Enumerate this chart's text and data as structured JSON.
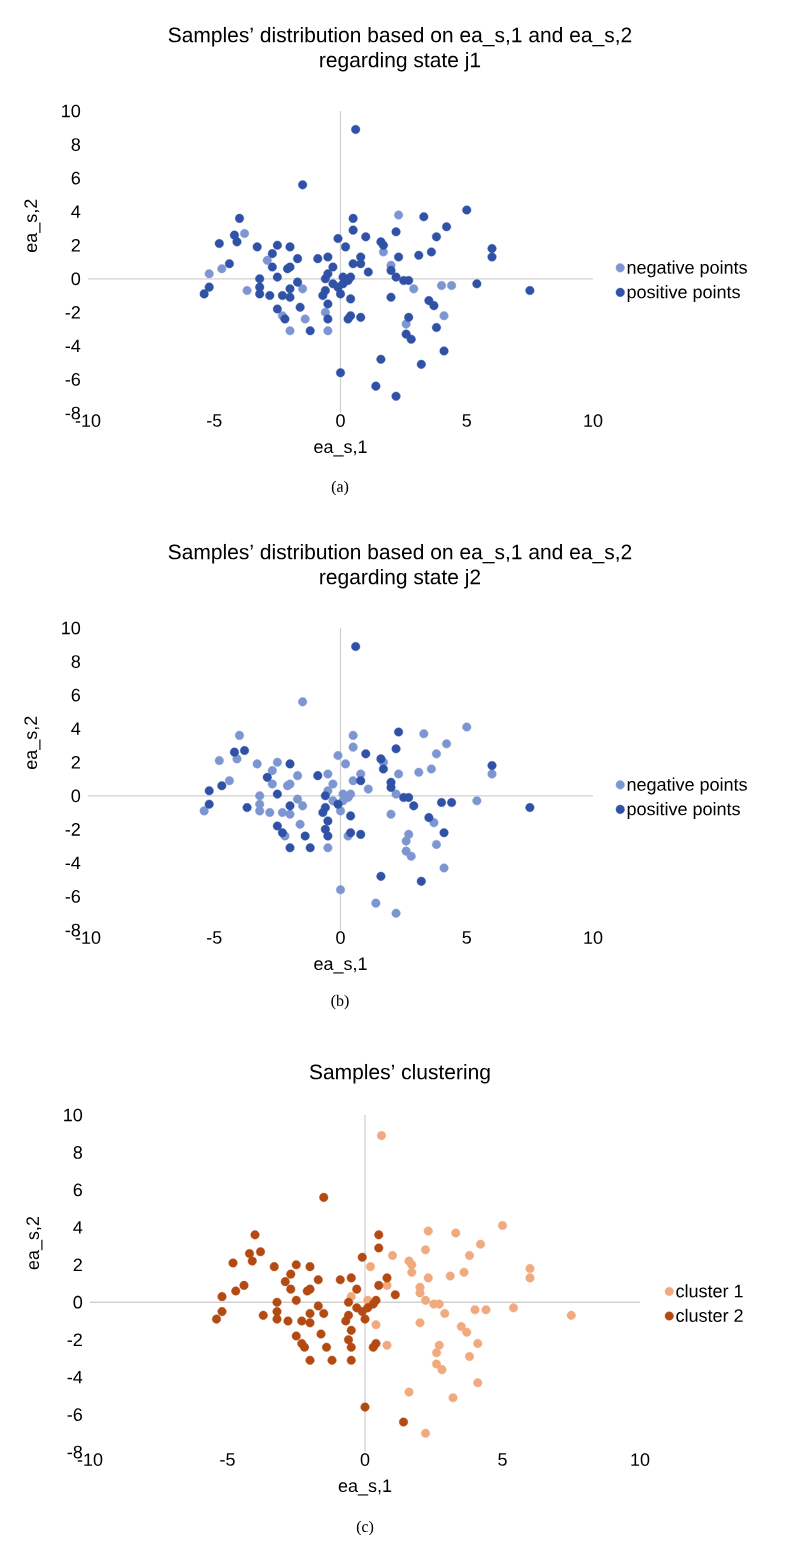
{
  "chart_data": [
    {
      "type": "scatter",
      "title": "Samples’ distribution based on ea_s,1 and ea_s,2 regarding state j1",
      "xlabel": "ea_s,1",
      "ylabel": "ea_s,2",
      "annotations": [
        "(a)"
      ],
      "marker": "circle",
      "legend": "right",
      "xlim": [
        -10,
        10
      ],
      "xticks": [
        -10,
        -5,
        0,
        5,
        10
      ],
      "ylim": [
        -8,
        10
      ],
      "yticks": [
        -8,
        -6,
        -4,
        -2,
        0,
        2,
        4,
        6,
        8,
        10
      ],
      "series": [
        {
          "name": "negative points",
          "color": "#7d96d2",
          "x": [
            2.3,
            1.7,
            2.0,
            2.9,
            4.0,
            4.4,
            4.1,
            2.6,
            -3.8,
            -2.9,
            -4.7,
            -5.2,
            -3.7,
            -1.5,
            -2.3,
            -1.4,
            -2.0,
            -0.5,
            -0.6
          ],
          "values": [
            3.8,
            1.6,
            0.8,
            -0.6,
            -0.4,
            -0.4,
            -2.2,
            -2.7,
            2.7,
            1.1,
            0.6,
            0.3,
            -0.7,
            -0.6,
            -2.2,
            -2.4,
            -3.1,
            -3.1,
            -2.0
          ]
        },
        {
          "name": "positive points",
          "color": "#2f52a6",
          "x": [
            0.6,
            5.0,
            3.3,
            4.2,
            2.2,
            3.8,
            1.0,
            1.6,
            1.7,
            0.2,
            6.0,
            6.0,
            3.6,
            3.1,
            2.3,
            0.8,
            2.0,
            2.2,
            2.5,
            2.7,
            5.4,
            7.5,
            2.0,
            3.5,
            3.7,
            2.7,
            3.8,
            2.6,
            2.8,
            4.1,
            1.6,
            3.2,
            2.2,
            0.8,
            0.4,
            0.1,
            -0.5,
            -1.5,
            -4.0,
            -4.2,
            -4.1,
            -4.8,
            -3.3,
            -2.5,
            -2.0,
            -2.7,
            -1.7,
            -0.9,
            -0.5,
            -4.4,
            -2.7,
            -2.1,
            -2.0,
            -0.3,
            -3.2,
            -2.5,
            -1.7,
            -5.2,
            -3.2,
            -3.2,
            -2.8,
            -2.3,
            -2.0,
            -2.0,
            -5.4,
            -2.5,
            -2.2,
            -1.6,
            -1.2,
            -0.5,
            -0.7,
            -0.6,
            -0.5,
            -0.3,
            -0.1,
            0.0,
            0.1,
            0.3,
            0.4,
            0.4,
            0.3,
            -0.1,
            0.5,
            0.5,
            0.8,
            0.5,
            1.1,
            0.0,
            1.4,
            -0.6
          ],
          "values": [
            8.9,
            4.1,
            3.7,
            3.1,
            2.8,
            2.5,
            2.5,
            2.2,
            2.0,
            1.9,
            1.8,
            1.3,
            1.6,
            1.4,
            1.3,
            0.9,
            0.5,
            0.1,
            -0.1,
            -0.1,
            -0.3,
            -0.7,
            -1.1,
            -1.3,
            -1.6,
            -2.3,
            -2.9,
            -3.3,
            -3.6,
            -4.3,
            -4.8,
            -5.1,
            -7.0,
            -2.3,
            -1.2,
            0.1,
            0.3,
            5.6,
            3.6,
            2.6,
            2.2,
            2.1,
            1.9,
            2.0,
            1.9,
            1.5,
            1.2,
            1.2,
            1.3,
            0.9,
            0.7,
            0.6,
            0.7,
            0.7,
            0.0,
            0.1,
            -0.2,
            -0.5,
            -0.5,
            -0.9,
            -1.0,
            -1.0,
            -1.1,
            -0.6,
            -0.9,
            -1.8,
            -2.4,
            -1.7,
            -3.1,
            -2.4,
            -1.0,
            -0.7,
            -1.5,
            -0.3,
            -0.5,
            -0.9,
            -0.3,
            -0.1,
            0.1,
            -2.2,
            -2.4,
            2.4,
            3.6,
            2.9,
            1.3,
            0.9,
            0.4,
            -5.6,
            -6.4,
            0.0
          ]
        }
      ]
    },
    {
      "type": "scatter",
      "title": "Samples’ distribution based on ea_s,1 and ea_s,2 regarding state j2",
      "xlabel": "ea_s,1",
      "ylabel": "ea_s,2",
      "annotations": [
        "(b)"
      ],
      "marker": "circle",
      "legend": "right",
      "xlim": [
        -10,
        10
      ],
      "xticks": [
        -10,
        -5,
        0,
        5,
        10
      ],
      "ylim": [
        -8,
        10
      ],
      "yticks": [
        -8,
        -6,
        -4,
        -2,
        0,
        2,
        4,
        6,
        8,
        10
      ],
      "series": [
        {
          "name": "negative points",
          "color": "#7d96d2",
          "x": [
            5.0,
            3.3,
            4.2,
            3.8,
            1.7,
            0.2,
            6.0,
            3.6,
            3.1,
            2.3,
            2.2,
            5.4,
            2.0,
            3.7,
            2.7,
            2.6,
            3.8,
            2.6,
            2.8,
            4.1,
            2.2,
            0.1,
            -0.5,
            -1.5,
            -4.0,
            -4.1,
            -4.8,
            -3.3,
            -2.5,
            -2.7,
            -1.7,
            -0.5,
            -4.4,
            -2.7,
            -2.1,
            -2.0,
            -0.3,
            -3.2,
            -1.7,
            -3.2,
            -3.2,
            -2.8,
            -2.3,
            -2.0,
            -1.5,
            -5.4,
            -2.2,
            -1.6,
            -0.5,
            -0.3,
            0.0,
            0.1,
            0.3,
            0.4,
            0.3,
            -0.1,
            0.5,
            0.5,
            0.8,
            0.5,
            1.1,
            0.0,
            1.4
          ],
          "values": [
            4.1,
            3.7,
            3.1,
            2.5,
            2.0,
            1.9,
            1.3,
            1.6,
            1.4,
            1.3,
            0.1,
            -0.3,
            -1.1,
            -1.6,
            -2.3,
            -2.7,
            -2.9,
            -3.3,
            -3.6,
            -4.3,
            -7.0,
            0.1,
            0.3,
            5.6,
            3.6,
            2.2,
            2.1,
            1.9,
            2.0,
            1.5,
            1.2,
            1.3,
            0.9,
            0.7,
            0.6,
            0.7,
            0.7,
            0.0,
            -0.2,
            -0.5,
            -0.9,
            -1.0,
            -1.0,
            -1.1,
            -0.6,
            -0.9,
            -2.4,
            -1.7,
            -3.1,
            -0.3,
            -0.9,
            -0.3,
            -0.1,
            0.1,
            -2.4,
            2.4,
            3.6,
            2.9,
            1.3,
            0.9,
            0.4,
            -5.6,
            -6.4
          ]
        },
        {
          "name": "positive points",
          "color": "#2f52a6",
          "x": [
            0.6,
            2.3,
            2.2,
            1.0,
            1.6,
            1.7,
            6.0,
            0.8,
            2.0,
            2.0,
            2.5,
            2.7,
            2.9,
            4.0,
            4.4,
            7.5,
            3.5,
            4.1,
            1.6,
            3.2,
            0.8,
            0.4,
            -4.2,
            -3.8,
            -2.0,
            -2.9,
            -0.9,
            -4.7,
            -5.2,
            -2.5,
            -5.2,
            -3.7,
            -2.0,
            -2.5,
            -2.3,
            -1.4,
            -2.0,
            -1.2,
            -0.5,
            -0.6,
            -0.7,
            -0.6,
            -0.5,
            -0.1,
            0.4,
            -0.6
          ],
          "values": [
            8.9,
            3.8,
            2.8,
            2.5,
            2.2,
            1.6,
            1.8,
            0.9,
            0.8,
            0.5,
            -0.1,
            -0.1,
            -0.6,
            -0.4,
            -0.4,
            -0.7,
            -1.3,
            -2.2,
            -4.8,
            -5.1,
            -2.3,
            -1.2,
            2.6,
            2.7,
            1.9,
            1.1,
            1.2,
            0.6,
            0.3,
            0.1,
            -0.5,
            -0.7,
            -0.6,
            -1.8,
            -2.2,
            -2.4,
            -3.1,
            -3.1,
            -2.4,
            -2.0,
            -1.0,
            -0.7,
            -1.5,
            -0.5,
            -2.2,
            0.0
          ]
        }
      ]
    },
    {
      "type": "scatter",
      "title": "Samples’ clustering",
      "xlabel": "ea_s,1",
      "ylabel": "ea_s,2",
      "annotations": [
        "(c)"
      ],
      "marker": "circle",
      "legend": "right",
      "xlim": [
        -10,
        10
      ],
      "xticks": [
        -10,
        -5,
        0,
        5,
        10
      ],
      "ylim": [
        -8,
        10
      ],
      "yticks": [
        -8,
        -6,
        -4,
        -2,
        0,
        2,
        4,
        6,
        8,
        10
      ],
      "series": [
        {
          "name": "cluster 1",
          "color": "#f0aa7d",
          "x": [
            0.6,
            5.0,
            2.3,
            3.3,
            4.2,
            2.2,
            3.8,
            1.0,
            1.6,
            1.7,
            1.7,
            0.2,
            6.0,
            6.0,
            3.6,
            3.1,
            2.3,
            0.8,
            2.0,
            2.0,
            2.2,
            2.5,
            2.7,
            2.9,
            4.0,
            4.4,
            5.4,
            7.5,
            2.0,
            3.5,
            3.7,
            4.1,
            2.7,
            2.6,
            3.8,
            2.6,
            2.8,
            4.1,
            1.6,
            3.2,
            2.2,
            0.8,
            0.4,
            0.1,
            -0.5
          ],
          "values": [
            8.9,
            4.1,
            3.8,
            3.7,
            3.1,
            2.8,
            2.5,
            2.5,
            2.2,
            2.0,
            1.6,
            1.9,
            1.8,
            1.3,
            1.6,
            1.4,
            1.3,
            0.9,
            0.8,
            0.5,
            0.1,
            -0.1,
            -0.1,
            -0.6,
            -0.4,
            -0.4,
            -0.3,
            -0.7,
            -1.1,
            -1.3,
            -1.6,
            -2.2,
            -2.3,
            -2.7,
            -2.9,
            -3.3,
            -3.6,
            -4.3,
            -4.8,
            -5.1,
            -7.0,
            -2.3,
            -1.2,
            0.1,
            0.3
          ]
        },
        {
          "name": "cluster 2",
          "color": "#b34a12",
          "x": [
            -1.5,
            -4.0,
            -4.2,
            -3.8,
            -4.1,
            -4.8,
            -3.3,
            -2.5,
            -2.0,
            -2.7,
            -2.9,
            -1.7,
            -0.9,
            -0.5,
            -4.4,
            -4.7,
            -2.7,
            -2.1,
            -2.0,
            -0.3,
            -5.2,
            -3.2,
            -2.5,
            -1.7,
            -5.2,
            -3.7,
            -3.2,
            -3.2,
            -2.8,
            -2.3,
            -2.0,
            -2.0,
            -1.5,
            -5.4,
            -2.5,
            -2.3,
            -2.2,
            -1.6,
            -1.4,
            -2.0,
            -1.2,
            -0.5,
            -0.5,
            -0.6,
            -0.7,
            -0.6,
            -0.5,
            -0.3,
            -0.1,
            0.0,
            0.1,
            0.3,
            0.4,
            0.4,
            0.3,
            -0.1,
            0.5,
            0.5,
            0.8,
            0.5,
            1.1,
            0.0,
            1.4,
            -0.6
          ],
          "values": [
            5.6,
            3.6,
            2.6,
            2.7,
            2.2,
            2.1,
            1.9,
            2.0,
            1.9,
            1.5,
            1.1,
            1.2,
            1.2,
            1.3,
            0.9,
            0.6,
            0.7,
            0.6,
            0.7,
            0.7,
            0.3,
            0.0,
            0.1,
            -0.2,
            -0.5,
            -0.7,
            -0.5,
            -0.9,
            -1.0,
            -1.0,
            -1.1,
            -0.6,
            -0.6,
            -0.9,
            -1.8,
            -2.2,
            -2.4,
            -1.7,
            -2.4,
            -3.1,
            -3.1,
            -3.1,
            -2.4,
            -2.0,
            -1.0,
            -0.7,
            -1.5,
            -0.3,
            -0.5,
            -0.9,
            -0.3,
            -0.1,
            0.1,
            -2.2,
            -2.4,
            2.4,
            3.6,
            2.9,
            1.3,
            0.9,
            0.4,
            -5.6,
            -6.4,
            0.0
          ]
        }
      ]
    }
  ]
}
